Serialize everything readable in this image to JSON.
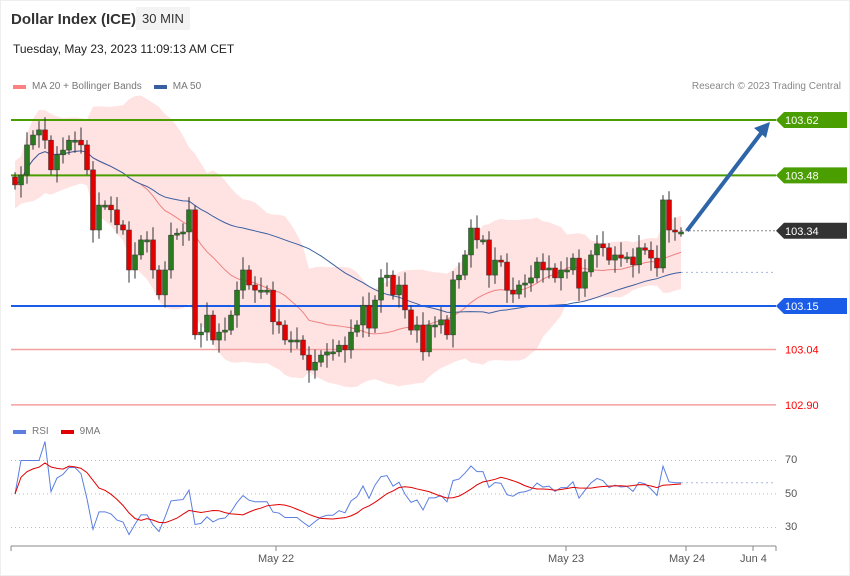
{
  "header": {
    "title": "Dollar Index (ICE)",
    "timeframe": "30 MIN",
    "datetime": "Tuesday, May 23, 2023 11:09:13 AM CET"
  },
  "legend": {
    "bollinger": "MA 20 + Bollinger Bands",
    "ma50": "MA 50",
    "rsi": "RSI",
    "rsi_ma": "9MA"
  },
  "credit": "Research © 2023 Trading Central",
  "colors": {
    "up": "#2a7a1f",
    "down": "#e00000",
    "resistance": "#4a9e00",
    "current": "#333333",
    "pivot": "#1a5ce8",
    "support": "#ff0000",
    "band": "#ffe3e3",
    "ma20": "#f08080",
    "ma50": "#3a5fa0",
    "arrow": "#2e65a8",
    "rsi": "#5b7fe0",
    "rsi_ma": "#e00000"
  },
  "chart_data": {
    "type": "candlestick",
    "closes": [
      103.456,
      103.481,
      103.557,
      103.582,
      103.595,
      103.569,
      103.494,
      103.532,
      103.544,
      103.569,
      103.569,
      103.557,
      103.494,
      103.342,
      103.405,
      103.405,
      103.393,
      103.355,
      103.342,
      103.241,
      103.279,
      103.317,
      103.317,
      103.241,
      103.178,
      103.241,
      103.329,
      103.334,
      103.337,
      103.393,
      103.077,
      103.084,
      103.127,
      103.064,
      103.084,
      103.089,
      103.127,
      103.19,
      103.241,
      103.203,
      103.19,
      103.19,
      103.19,
      103.11,
      103.102,
      103.064,
      103.064,
      103.064,
      103.026,
      102.988,
      103.008,
      103.026,
      103.034,
      103.034,
      103.051,
      103.039,
      103.084,
      103.102,
      103.152,
      103.094,
      103.165,
      103.221,
      103.228,
      103.178,
      103.203,
      103.14,
      103.089,
      103.102,
      103.034,
      103.102,
      103.102,
      103.115,
      103.077,
      103.216,
      103.228,
      103.279,
      103.347,
      103.317,
      103.317,
      103.228,
      103.266,
      103.261,
      103.19,
      103.18,
      103.203,
      103.208,
      103.221,
      103.261,
      103.241,
      103.246,
      103.221,
      103.241,
      103.241,
      103.271,
      103.195,
      103.236,
      103.279,
      103.307,
      103.297,
      103.266,
      103.279,
      103.271,
      103.274,
      103.254,
      103.297,
      103.291,
      103.271,
      103.246,
      103.418,
      103.342,
      103.337,
      103.337
    ],
    "levels": [
      {
        "label": "103.62",
        "value": 103.62,
        "kind": "resistance"
      },
      {
        "label": "103.48",
        "value": 103.48,
        "kind": "resistance"
      },
      {
        "label": "103.34",
        "value": 103.34,
        "kind": "current"
      },
      {
        "label": "103.15",
        "value": 103.15,
        "kind": "pivot"
      },
      {
        "label": "103.04",
        "value": 103.04,
        "kind": "support"
      },
      {
        "label": "102.90",
        "value": 102.9,
        "kind": "support"
      }
    ],
    "arrow": {
      "from": 103.34,
      "to": 103.62
    },
    "x_ticks": [
      "May 22",
      "May 23",
      "May 24",
      "Jun 4"
    ],
    "rsi_ticks": [
      "70",
      "50",
      "30"
    ]
  }
}
